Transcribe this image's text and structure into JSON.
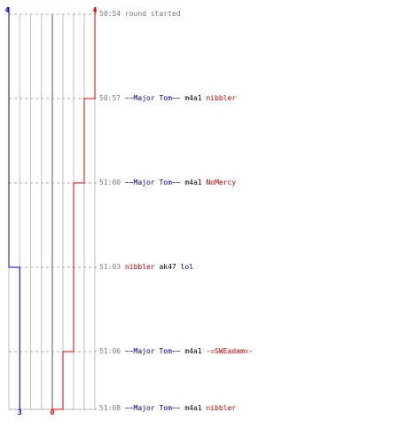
{
  "colors": {
    "blue_team": "#0000cc",
    "red_team": "#dd0000",
    "grid": "#c0c0c0",
    "center": "#555555",
    "dashed": "#aaaaaa"
  },
  "scores": {
    "blue_start": "4",
    "red_start": "4",
    "blue_end": "3",
    "red_end": "0"
  },
  "events": [
    {
      "time": "50:54",
      "parts": [
        {
          "text": "round started",
          "cls": "gray"
        }
      ]
    },
    {
      "time": "50:57",
      "parts": [
        {
          "text": "~~Major Tom~~",
          "cls": "blue"
        },
        {
          "text": " m4a1 ",
          "cls": "dark"
        },
        {
          "text": "nibbler",
          "cls": "red"
        }
      ]
    },
    {
      "time": "51:00",
      "parts": [
        {
          "text": "~~Major Tom~~",
          "cls": "blue"
        },
        {
          "text": " m4a1 ",
          "cls": "dark"
        },
        {
          "text": "NoMercy",
          "cls": "red"
        }
      ]
    },
    {
      "time": "51:03",
      "parts": [
        {
          "text": "nibbler",
          "cls": "red"
        },
        {
          "text": " ak47 ",
          "cls": "dark"
        },
        {
          "text": "lol",
          "cls": "blue"
        }
      ]
    },
    {
      "time": "51:06",
      "parts": [
        {
          "text": "~~Major Tom~~",
          "cls": "blue"
        },
        {
          "text": " m4a1 ",
          "cls": "dark"
        },
        {
          "text": "-=SWEadam=-",
          "cls": "red"
        }
      ]
    },
    {
      "time": "51:08",
      "parts": [
        {
          "text": "~~Major Tom~~",
          "cls": "blue"
        },
        {
          "text": " m4a1 ",
          "cls": "dark"
        },
        {
          "text": "nibbler",
          "cls": "red"
        }
      ]
    }
  ],
  "chart_data": {
    "type": "line",
    "x": [
      "50:54",
      "50:57",
      "51:00",
      "51:03",
      "51:06",
      "51:08"
    ],
    "series": [
      {
        "values": [
          4,
          4,
          4,
          3,
          3,
          3
        ]
      },
      {
        "values": [
          4,
          3,
          2,
          2,
          1,
          0
        ]
      }
    ],
    "ylim": [
      0,
      4
    ]
  }
}
